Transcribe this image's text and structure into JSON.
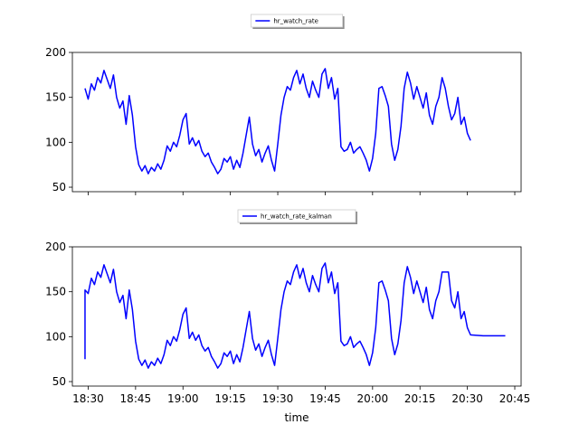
{
  "chart_data": [
    {
      "type": "line",
      "series": [
        {
          "name": "hr_watch_rate",
          "color": "#0000ff",
          "points": [
            [
              "18:29",
              160
            ],
            [
              "18:30",
              148
            ],
            [
              "18:31",
              165
            ],
            [
              "18:32",
              158
            ],
            [
              "18:33",
              172
            ],
            [
              "18:34",
              166
            ],
            [
              "18:35",
              180
            ],
            [
              "18:36",
              170
            ],
            [
              "18:37",
              160
            ],
            [
              "18:38",
              175
            ],
            [
              "18:39",
              150
            ],
            [
              "18:40",
              138
            ],
            [
              "18:41",
              146
            ],
            [
              "18:42",
              120
            ],
            [
              "18:43",
              152
            ],
            [
              "18:44",
              130
            ],
            [
              "18:45",
              95
            ],
            [
              "18:46",
              75
            ],
            [
              "18:47",
              68
            ],
            [
              "18:48",
              74
            ],
            [
              "18:49",
              65
            ],
            [
              "18:50",
              72
            ],
            [
              "18:51",
              68
            ],
            [
              "18:52",
              76
            ],
            [
              "18:53",
              70
            ],
            [
              "18:54",
              80
            ],
            [
              "18:55",
              96
            ],
            [
              "18:56",
              90
            ],
            [
              "18:57",
              100
            ],
            [
              "18:58",
              95
            ],
            [
              "18:59",
              108
            ],
            [
              "19:00",
              125
            ],
            [
              "19:01",
              132
            ],
            [
              "19:02",
              98
            ],
            [
              "19:03",
              105
            ],
            [
              "19:04",
              96
            ],
            [
              "19:05",
              102
            ],
            [
              "19:06",
              90
            ],
            [
              "19:07",
              84
            ],
            [
              "19:08",
              88
            ],
            [
              "19:09",
              78
            ],
            [
              "19:10",
              72
            ],
            [
              "19:11",
              65
            ],
            [
              "19:12",
              70
            ],
            [
              "19:13",
              82
            ],
            [
              "19:14",
              78
            ],
            [
              "19:15",
              84
            ],
            [
              "19:16",
              70
            ],
            [
              "19:17",
              80
            ],
            [
              "19:18",
              72
            ],
            [
              "19:19",
              88
            ],
            [
              "19:20",
              108
            ],
            [
              "19:21",
              128
            ],
            [
              "19:22",
              98
            ],
            [
              "19:23",
              85
            ],
            [
              "19:24",
              92
            ],
            [
              "19:25",
              78
            ],
            [
              "19:26",
              88
            ],
            [
              "19:27",
              96
            ],
            [
              "19:28",
              80
            ],
            [
              "19:29",
              68
            ],
            [
              "19:30",
              98
            ],
            [
              "19:31",
              130
            ],
            [
              "19:32",
              150
            ],
            [
              "19:33",
              162
            ],
            [
              "19:34",
              158
            ],
            [
              "19:35",
              172
            ],
            [
              "19:36",
              180
            ],
            [
              "19:37",
              165
            ],
            [
              "19:38",
              176
            ],
            [
              "19:39",
              160
            ],
            [
              "19:40",
              150
            ],
            [
              "19:41",
              168
            ],
            [
              "19:42",
              158
            ],
            [
              "19:43",
              150
            ],
            [
              "19:44",
              176
            ],
            [
              "19:45",
              182
            ],
            [
              "19:46",
              160
            ],
            [
              "19:47",
              172
            ],
            [
              "19:48",
              148
            ],
            [
              "19:49",
              160
            ],
            [
              "19:50",
              95
            ],
            [
              "19:51",
              90
            ],
            [
              "19:52",
              92
            ],
            [
              "19:53",
              100
            ],
            [
              "19:54",
              88
            ],
            [
              "19:55",
              92
            ],
            [
              "19:56",
              95
            ],
            [
              "19:57",
              88
            ],
            [
              "19:58",
              80
            ],
            [
              "19:59",
              68
            ],
            [
              "20:00",
              82
            ],
            [
              "20:01",
              110
            ],
            [
              "20:02",
              160
            ],
            [
              "20:03",
              162
            ],
            [
              "20:04",
              152
            ],
            [
              "20:05",
              140
            ],
            [
              "20:06",
              98
            ],
            [
              "20:07",
              80
            ],
            [
              "20:08",
              92
            ],
            [
              "20:09",
              118
            ],
            [
              "20:10",
              160
            ],
            [
              "20:11",
              178
            ],
            [
              "20:12",
              166
            ],
            [
              "20:13",
              148
            ],
            [
              "20:14",
              162
            ],
            [
              "20:15",
              150
            ],
            [
              "20:16",
              138
            ],
            [
              "20:17",
              155
            ],
            [
              "20:18",
              130
            ],
            [
              "20:19",
              120
            ],
            [
              "20:20",
              140
            ],
            [
              "20:21",
              150
            ],
            [
              "20:22",
              172
            ],
            [
              "20:23",
              160
            ],
            [
              "20:24",
              140
            ],
            [
              "20:25",
              125
            ],
            [
              "20:26",
              132
            ],
            [
              "20:27",
              150
            ],
            [
              "20:28",
              120
            ],
            [
              "20:29",
              128
            ],
            [
              "20:30",
              110
            ],
            [
              "20:31",
              102
            ]
          ]
        }
      ],
      "legend": "top-center",
      "ylim": [
        45,
        200
      ],
      "yticks": [
        50,
        100,
        150,
        200
      ],
      "xlim": [
        "18:25",
        "20:47"
      ],
      "xticks": [
        "18:30",
        "18:45",
        "19:00",
        "19:15",
        "19:30",
        "19:45",
        "20:00",
        "20:15",
        "20:30",
        "20:45"
      ],
      "xtick_labels_visible": false,
      "grid": false
    },
    {
      "type": "line",
      "series": [
        {
          "name": "hr_watch_rate_kalman",
          "color": "#0000ff",
          "points": [
            [
              "18:29",
              75
            ],
            [
              "18:29",
              152
            ],
            [
              "18:30",
              148
            ],
            [
              "18:31",
              165
            ],
            [
              "18:32",
              158
            ],
            [
              "18:33",
              172
            ],
            [
              "18:34",
              166
            ],
            [
              "18:35",
              180
            ],
            [
              "18:36",
              170
            ],
            [
              "18:37",
              160
            ],
            [
              "18:38",
              175
            ],
            [
              "18:39",
              150
            ],
            [
              "18:40",
              138
            ],
            [
              "18:41",
              146
            ],
            [
              "18:42",
              120
            ],
            [
              "18:43",
              152
            ],
            [
              "18:44",
              130
            ],
            [
              "18:45",
              95
            ],
            [
              "18:46",
              75
            ],
            [
              "18:47",
              68
            ],
            [
              "18:48",
              74
            ],
            [
              "18:49",
              65
            ],
            [
              "18:50",
              72
            ],
            [
              "18:51",
              68
            ],
            [
              "18:52",
              76
            ],
            [
              "18:53",
              70
            ],
            [
              "18:54",
              80
            ],
            [
              "18:55",
              96
            ],
            [
              "18:56",
              90
            ],
            [
              "18:57",
              100
            ],
            [
              "18:58",
              95
            ],
            [
              "18:59",
              108
            ],
            [
              "19:00",
              125
            ],
            [
              "19:01",
              132
            ],
            [
              "19:02",
              98
            ],
            [
              "19:03",
              105
            ],
            [
              "19:04",
              96
            ],
            [
              "19:05",
              102
            ],
            [
              "19:06",
              90
            ],
            [
              "19:07",
              84
            ],
            [
              "19:08",
              88
            ],
            [
              "19:09",
              78
            ],
            [
              "19:10",
              72
            ],
            [
              "19:11",
              65
            ],
            [
              "19:12",
              70
            ],
            [
              "19:13",
              82
            ],
            [
              "19:14",
              78
            ],
            [
              "19:15",
              84
            ],
            [
              "19:16",
              70
            ],
            [
              "19:17",
              80
            ],
            [
              "19:18",
              72
            ],
            [
              "19:19",
              88
            ],
            [
              "19:20",
              108
            ],
            [
              "19:21",
              128
            ],
            [
              "19:22",
              98
            ],
            [
              "19:23",
              85
            ],
            [
              "19:24",
              92
            ],
            [
              "19:25",
              78
            ],
            [
              "19:26",
              88
            ],
            [
              "19:27",
              96
            ],
            [
              "19:28",
              80
            ],
            [
              "19:29",
              68
            ],
            [
              "19:30",
              98
            ],
            [
              "19:31",
              130
            ],
            [
              "19:32",
              150
            ],
            [
              "19:33",
              162
            ],
            [
              "19:34",
              158
            ],
            [
              "19:35",
              172
            ],
            [
              "19:36",
              180
            ],
            [
              "19:37",
              165
            ],
            [
              "19:38",
              176
            ],
            [
              "19:39",
              160
            ],
            [
              "19:40",
              150
            ],
            [
              "19:41",
              168
            ],
            [
              "19:42",
              158
            ],
            [
              "19:43",
              150
            ],
            [
              "19:44",
              176
            ],
            [
              "19:45",
              182
            ],
            [
              "19:46",
              160
            ],
            [
              "19:47",
              172
            ],
            [
              "19:48",
              148
            ],
            [
              "19:49",
              160
            ],
            [
              "19:50",
              95
            ],
            [
              "19:51",
              90
            ],
            [
              "19:52",
              92
            ],
            [
              "19:53",
              100
            ],
            [
              "19:54",
              88
            ],
            [
              "19:55",
              92
            ],
            [
              "19:56",
              95
            ],
            [
              "19:57",
              88
            ],
            [
              "19:58",
              80
            ],
            [
              "19:59",
              68
            ],
            [
              "20:00",
              82
            ],
            [
              "20:01",
              110
            ],
            [
              "20:02",
              160
            ],
            [
              "20:03",
              162
            ],
            [
              "20:04",
              152
            ],
            [
              "20:05",
              140
            ],
            [
              "20:06",
              98
            ],
            [
              "20:07",
              80
            ],
            [
              "20:08",
              92
            ],
            [
              "20:09",
              118
            ],
            [
              "20:10",
              160
            ],
            [
              "20:11",
              178
            ],
            [
              "20:12",
              166
            ],
            [
              "20:13",
              148
            ],
            [
              "20:14",
              162
            ],
            [
              "20:15",
              150
            ],
            [
              "20:16",
              138
            ],
            [
              "20:17",
              155
            ],
            [
              "20:18",
              130
            ],
            [
              "20:19",
              120
            ],
            [
              "20:20",
              140
            ],
            [
              "20:21",
              150
            ],
            [
              "20:22",
              172
            ],
            [
              "20:23",
              172
            ],
            [
              "20:24",
              172
            ],
            [
              "20:25",
              140
            ],
            [
              "20:26",
              132
            ],
            [
              "20:27",
              150
            ],
            [
              "20:28",
              120
            ],
            [
              "20:29",
              128
            ],
            [
              "20:30",
              110
            ],
            [
              "20:31",
              102
            ],
            [
              "20:35",
              101
            ],
            [
              "20:40",
              101
            ],
            [
              "20:42",
              101
            ]
          ]
        }
      ],
      "legend": "top-center",
      "ylim": [
        45,
        200
      ],
      "yticks": [
        50,
        100,
        150,
        200
      ],
      "xlim": [
        "18:25",
        "20:47"
      ],
      "xticks": [
        "18:30",
        "18:45",
        "19:00",
        "19:15",
        "19:30",
        "19:45",
        "20:00",
        "20:15",
        "20:30",
        "20:45"
      ],
      "xlabel": "time",
      "xtick_labels_visible": true,
      "grid": false
    }
  ]
}
